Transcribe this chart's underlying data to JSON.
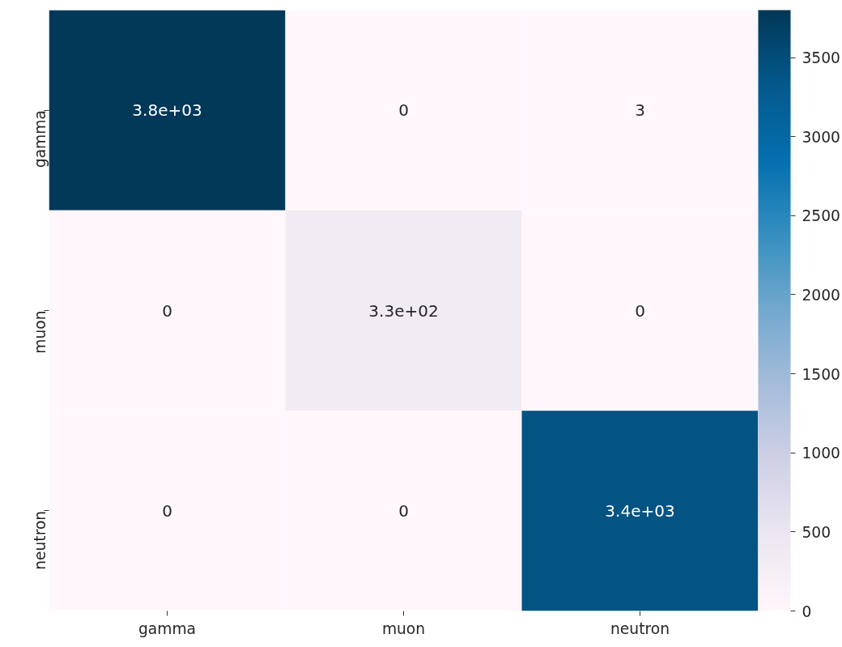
{
  "chart_data": {
    "type": "heatmap",
    "categories": [
      "gamma",
      "muon",
      "neutron"
    ],
    "y_categories": [
      "gamma",
      "muon",
      "neutron"
    ],
    "cells": [
      [
        3800,
        0,
        3
      ],
      [
        0,
        330,
        0
      ],
      [
        0,
        0,
        3400
      ]
    ],
    "cell_labels": [
      [
        "3.8e+03",
        "0",
        "3"
      ],
      [
        "0",
        "3.3e+02",
        "0"
      ],
      [
        "0",
        "0",
        "3.4e+03"
      ]
    ],
    "clim": [
      0,
      3800
    ],
    "cticks": [
      0,
      500,
      1000,
      1500,
      2000,
      2500,
      3000,
      3500
    ]
  }
}
